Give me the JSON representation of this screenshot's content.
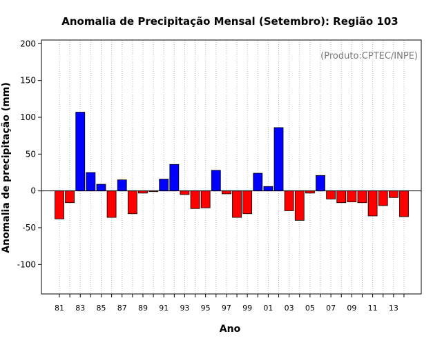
{
  "chart_data": {
    "type": "bar",
    "title": "Anomalia de Precipitação Mensal (Setembro): Região 103",
    "xlabel": "Ano",
    "ylabel": "Anomalia de precipitação (mm)",
    "source_note": "(Produto:CPTEC/INPE)",
    "ylim": [
      -140,
      205
    ],
    "yticks": [
      -100,
      -50,
      0,
      50,
      100,
      150,
      200
    ],
    "xtick_labels": [
      "81",
      "83",
      "85",
      "87",
      "89",
      "91",
      "93",
      "95",
      "97",
      "99",
      "01",
      "03",
      "05",
      "07",
      "09",
      "11",
      "13"
    ],
    "categories": [
      "1981",
      "1982",
      "1983",
      "1984",
      "1985",
      "1986",
      "1987",
      "1988",
      "1989",
      "1990",
      "1991",
      "1992",
      "1993",
      "1994",
      "1995",
      "1996",
      "1997",
      "1998",
      "1999",
      "2000",
      "2001",
      "2002",
      "2003",
      "2004",
      "2005",
      "2006",
      "2007",
      "2008",
      "2009",
      "2010",
      "2011",
      "2012",
      "2013",
      "2014"
    ],
    "values": [
      -38,
      -16,
      107,
      25,
      9,
      -36,
      15,
      -31,
      -3,
      -1,
      16,
      36,
      -5,
      -24,
      -23,
      28,
      -4,
      -36,
      -31,
      24,
      6,
      86,
      -27,
      -40,
      -3,
      21,
      -11,
      -16,
      -15,
      -16,
      -34,
      -20,
      -9,
      -35
    ],
    "grid": true,
    "colors": {
      "positive": "#0000ff",
      "negative": "#ff0000",
      "grid": "#bbbbbb",
      "frame": "#000000"
    }
  }
}
